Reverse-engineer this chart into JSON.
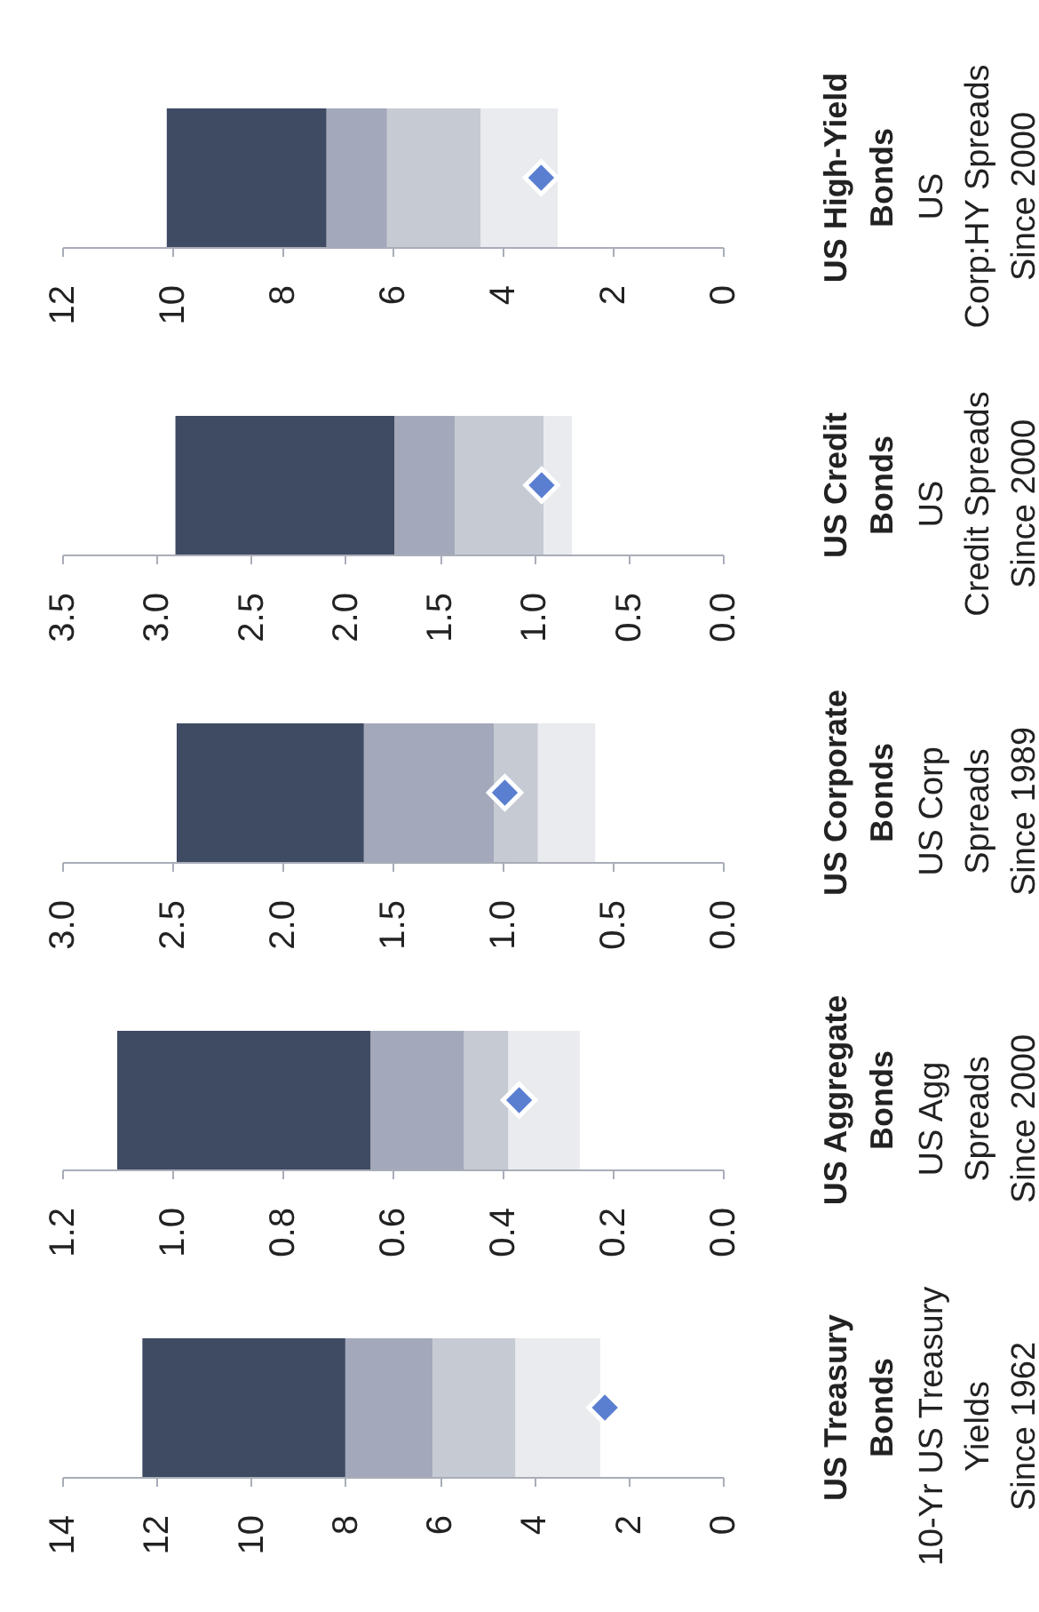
{
  "chart_data": [
    {
      "type": "bar",
      "orientation": "horizontal",
      "categories": [
        "US High-Yield\nBonds"
      ],
      "ylabel": "US\nCorp:HY Spreads\nSince 2000",
      "series": [
        {
          "color": "#eaebee",
          "base": [
            3.0
          ],
          "values": [
            1.4
          ]
        },
        {
          "color": "#c6cad3",
          "base": [
            4.4
          ],
          "values": [
            1.7
          ]
        },
        {
          "color": "#a3a9ba",
          "base": [
            6.1
          ],
          "values": [
            1.1
          ]
        },
        {
          "color": "#3f4a63",
          "base": [
            7.2
          ],
          "values": [
            2.9
          ]
        },
        {
          "type": "scatter",
          "color": "#5a7fd1",
          "marker": "diamond",
          "x": [
            "US High-Yield\nBonds"
          ],
          "values": [
            3.3
          ]
        }
      ],
      "xlim": [
        12,
        0
      ],
      "xticks": [
        12,
        10,
        8,
        6,
        4,
        2,
        0
      ]
    },
    {
      "type": "bar",
      "orientation": "horizontal",
      "categories": [
        "US Credit\nBonds"
      ],
      "ylabel": "US\nCredit Spreads\nSince 2000",
      "series": [
        {
          "color": "#eaebee",
          "base": [
            0.8
          ],
          "values": [
            0.15
          ]
        },
        {
          "color": "#c6cad3",
          "base": [
            0.95
          ],
          "values": [
            0.47
          ]
        },
        {
          "color": "#a3a9ba",
          "base": [
            1.42
          ],
          "values": [
            0.32
          ]
        },
        {
          "color": "#3f4a63",
          "base": [
            1.74
          ],
          "values": [
            1.16
          ]
        },
        {
          "type": "scatter",
          "color": "#5a7fd1",
          "marker": "diamond",
          "x": [
            "US Credit\nBonds"
          ],
          "values": [
            0.96
          ]
        }
      ],
      "xlim": [
        3.5,
        0
      ],
      "xticks": [
        3.5,
        {
          "value": 3,
          "label": "3.0"
        },
        2.5,
        {
          "value": 2,
          "label": "2.0"
        },
        1.5,
        {
          "value": 1,
          "label": "1.0"
        },
        0.5,
        {
          "value": 0,
          "label": "0.0"
        }
      ]
    },
    {
      "type": "bar",
      "orientation": "horizontal",
      "categories": [
        "US Corporate\nBonds"
      ],
      "ylabel": "US Corp\nSpreads\nSince 1989",
      "series": [
        {
          "color": "#eaebee",
          "base": [
            0.58
          ],
          "values": [
            0.26
          ]
        },
        {
          "color": "#c6cad3",
          "base": [
            0.84
          ],
          "values": [
            0.2
          ]
        },
        {
          "color": "#a3a9ba",
          "base": [
            1.04
          ],
          "values": [
            0.59
          ]
        },
        {
          "color": "#3f4a63",
          "base": [
            1.63
          ],
          "values": [
            0.85
          ]
        },
        {
          "type": "scatter",
          "color": "#5a7fd1",
          "marker": "diamond",
          "x": [
            "US Corporate\nBonds"
          ],
          "values": [
            0.99
          ]
        }
      ],
      "xlim": [
        3,
        0
      ],
      "xticks": [
        {
          "value": 3,
          "label": "3.0"
        },
        2.5,
        {
          "value": 2,
          "label": "2.0"
        },
        1.5,
        {
          "value": 1,
          "label": "1.0"
        },
        0.5,
        {
          "value": 0,
          "label": "0.0"
        }
      ]
    },
    {
      "type": "bar",
      "orientation": "horizontal",
      "categories": [
        "US Aggregate\nBonds"
      ],
      "ylabel": "US Agg\nSpreads\nSince 2000",
      "series": [
        {
          "color": "#eaebee",
          "base": [
            0.26
          ],
          "values": [
            0.13
          ]
        },
        {
          "color": "#c6cad3",
          "base": [
            0.39
          ],
          "values": [
            0.08
          ]
        },
        {
          "color": "#a3a9ba",
          "base": [
            0.47
          ],
          "values": [
            0.17
          ]
        },
        {
          "color": "#3f4a63",
          "base": [
            0.64
          ],
          "values": [
            0.46
          ]
        },
        {
          "type": "scatter",
          "color": "#5a7fd1",
          "marker": "diamond",
          "x": [
            "US Aggregate\nBonds"
          ],
          "values": [
            0.37
          ]
        }
      ],
      "xlim": [
        1.2,
        0
      ],
      "xticks": [
        1.2,
        {
          "value": 1,
          "label": "1.0"
        },
        0.8,
        0.6,
        0.4,
        0.2,
        {
          "value": 0,
          "label": "0.0"
        }
      ]
    },
    {
      "type": "bar",
      "orientation": "horizontal",
      "categories": [
        "US Treasury\nBonds"
      ],
      "ylabel": "10-Yr US Treasury\nYields\nSince 1962",
      "series": [
        {
          "color": "#eaebee",
          "base": [
            2.6
          ],
          "values": [
            1.8
          ]
        },
        {
          "color": "#c6cad3",
          "base": [
            4.4
          ],
          "values": [
            1.75
          ]
        },
        {
          "color": "#a3a9ba",
          "base": [
            6.15
          ],
          "values": [
            1.85
          ]
        },
        {
          "color": "#3f4a63",
          "base": [
            8.0
          ],
          "values": [
            4.3
          ]
        },
        {
          "type": "scatter",
          "color": "#5a7fd1",
          "marker": "diamond",
          "x": [
            "US Treasury\nBonds"
          ],
          "values": [
            2.5
          ]
        }
      ],
      "xlim": [
        14,
        0
      ],
      "xticks": [
        14,
        12,
        10,
        8,
        6,
        4,
        2,
        0
      ]
    }
  ]
}
